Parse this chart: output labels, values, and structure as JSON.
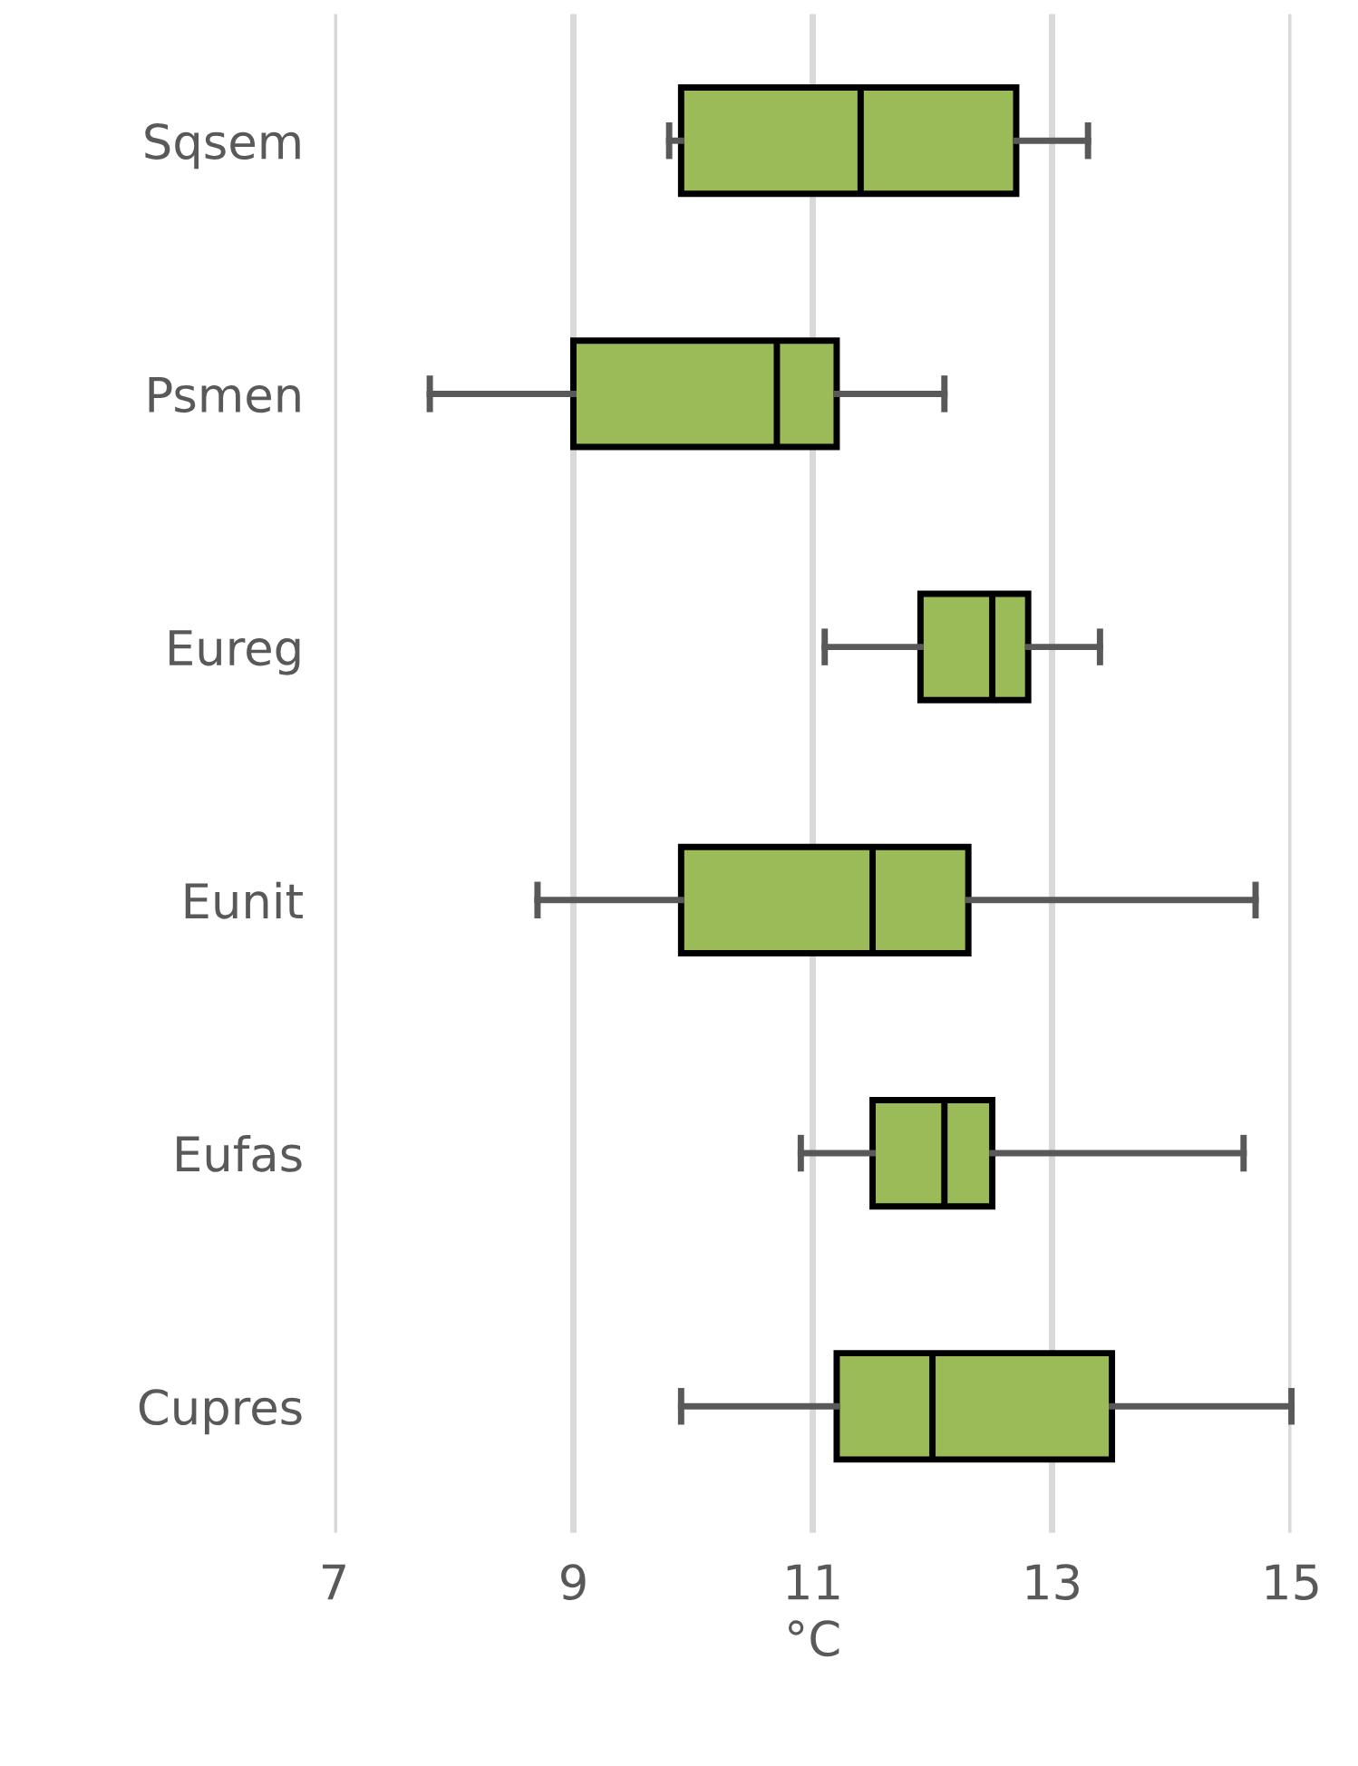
{
  "chart_data": {
    "type": "box",
    "orientation": "horizontal",
    "categories": [
      "Sqsem",
      "Psmen",
      "Eureg",
      "Eunit",
      "Eufas",
      "Cupres"
    ],
    "boxes": [
      {
        "low": 9.8,
        "q1": 9.9,
        "median": 11.4,
        "q3": 12.7,
        "high": 13.3
      },
      {
        "low": 7.8,
        "q1": 9.0,
        "median": 10.7,
        "q3": 11.2,
        "high": 12.1
      },
      {
        "low": 11.1,
        "q1": 11.9,
        "median": 12.5,
        "q3": 12.8,
        "high": 13.4
      },
      {
        "low": 8.7,
        "q1": 9.9,
        "median": 11.5,
        "q3": 12.3,
        "high": 14.7
      },
      {
        "low": 10.9,
        "q1": 11.5,
        "median": 12.1,
        "q3": 12.5,
        "high": 14.6
      },
      {
        "low": 9.9,
        "q1": 11.2,
        "median": 12.0,
        "q3": 13.5,
        "high": 15.0
      }
    ],
    "color": "#9bbb59",
    "xlabel": "°C",
    "xlim": [
      7,
      15
    ],
    "xticks": [
      7,
      9,
      11,
      13,
      15
    ],
    "grid": "x"
  }
}
